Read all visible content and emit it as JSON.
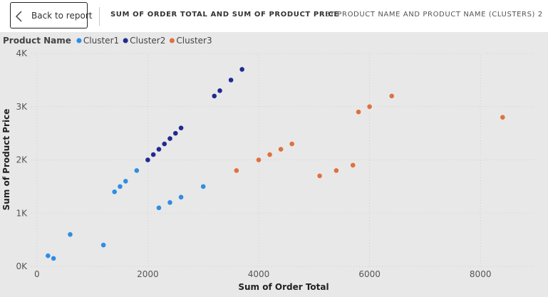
{
  "header": {
    "back_label": "Back to report",
    "title": "SUM OF ORDER TOTAL AND SUM OF PRODUCT PRICE",
    "subtitle": "BY PRODUCT NAME AND PRODUCT NAME (CLUSTERS) 2"
  },
  "colors": {
    "background": "#e8e8e8",
    "header": "#ffffff",
    "gridline": "#cfcfcf"
  },
  "chart_data": {
    "type": "scatter",
    "title": "SUM OF ORDER TOTAL AND SUM OF PRODUCT PRICE BY PRODUCT NAME AND PRODUCT NAME (CLUSTERS) 2",
    "xlabel": "Sum of Order Total",
    "ylabel": "Sum of Product Price",
    "xlim": [
      -100,
      9000
    ],
    "ylim": [
      0,
      4000
    ],
    "x_ticks": [
      0,
      2000,
      4000,
      6000,
      8000
    ],
    "x_tick_labels": [
      "0",
      "2000",
      "4000",
      "6000",
      "8000"
    ],
    "y_ticks": [
      0,
      1000,
      2000,
      3000,
      4000
    ],
    "y_tick_labels": [
      "0K",
      "1K",
      "2K",
      "3K",
      "4K"
    ],
    "grid": true,
    "legend": {
      "title": "Product Name",
      "position": "top-left"
    },
    "series": [
      {
        "name": "Cluster1",
        "color": "#2e8de6",
        "points": [
          [
            200,
            200
          ],
          [
            300,
            150
          ],
          [
            600,
            600
          ],
          [
            1200,
            400
          ],
          [
            1400,
            1400
          ],
          [
            1500,
            1500
          ],
          [
            1600,
            1600
          ],
          [
            1800,
            1800
          ],
          [
            2200,
            1100
          ],
          [
            2400,
            1200
          ],
          [
            2600,
            1300
          ],
          [
            3000,
            1500
          ]
        ]
      },
      {
        "name": "Cluster2",
        "color": "#1f2b8f",
        "points": [
          [
            2000,
            2000
          ],
          [
            2100,
            2100
          ],
          [
            2200,
            2200
          ],
          [
            2300,
            2300
          ],
          [
            2400,
            2400
          ],
          [
            2500,
            2500
          ],
          [
            2600,
            2600
          ],
          [
            3200,
            3200
          ],
          [
            3300,
            3300
          ],
          [
            3500,
            3500
          ],
          [
            3700,
            3700
          ]
        ]
      },
      {
        "name": "Cluster3",
        "color": "#e0703f",
        "points": [
          [
            3600,
            1800
          ],
          [
            4000,
            2000
          ],
          [
            4200,
            2100
          ],
          [
            4400,
            2200
          ],
          [
            4600,
            2300
          ],
          [
            5100,
            1700
          ],
          [
            5400,
            1800
          ],
          [
            5700,
            1900
          ],
          [
            5800,
            2900
          ],
          [
            6000,
            3000
          ],
          [
            6400,
            3200
          ],
          [
            8400,
            2800
          ]
        ]
      }
    ]
  }
}
